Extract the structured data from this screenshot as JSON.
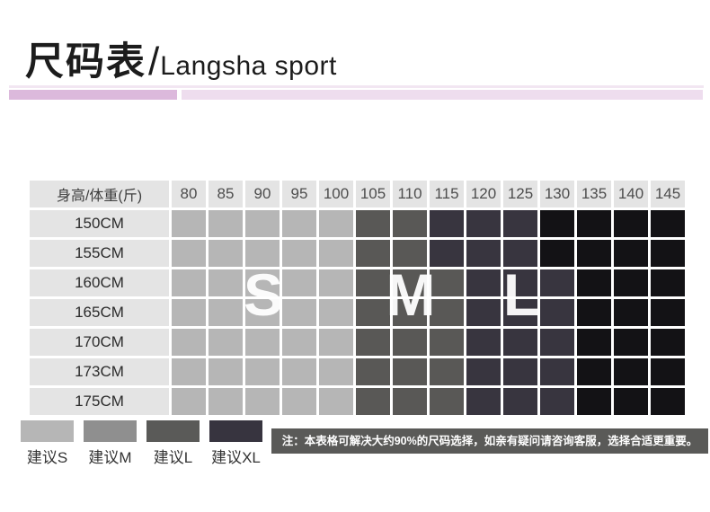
{
  "header": {
    "title_zh": "尺码表",
    "slash": "/",
    "title_en": "Langsha sport"
  },
  "colors": {
    "accent_bar_thin": "#f2e6f2",
    "accent_bar_left": "#dcb9dc",
    "accent_bar_right": "#eeddee",
    "header_bg": "#e4e4e4",
    "cell": {
      "S": "#b6b6b6",
      "M": "#595856",
      "L": "#38353f",
      "XL": "#131215"
    },
    "note_bg": "#5a5a58"
  },
  "table": {
    "corner_label": "身高/体重(斤)",
    "weight_columns": [
      "80",
      "85",
      "90",
      "95",
      "100",
      "105",
      "110",
      "115",
      "120",
      "125",
      "130",
      "135",
      "140",
      "145"
    ],
    "rows": [
      {
        "label": "150CM",
        "sizes": [
          "S",
          "S",
          "S",
          "S",
          "S",
          "M",
          "M",
          "L",
          "L",
          "L",
          "XL",
          "XL",
          "XL",
          "XL"
        ]
      },
      {
        "label": "155CM",
        "sizes": [
          "S",
          "S",
          "S",
          "S",
          "S",
          "M",
          "M",
          "L",
          "L",
          "L",
          "XL",
          "XL",
          "XL",
          "XL"
        ]
      },
      {
        "label": "160CM",
        "sizes": [
          "S",
          "S",
          "S",
          "S",
          "S",
          "M",
          "M",
          "M",
          "L",
          "L",
          "L",
          "XL",
          "XL",
          "XL"
        ]
      },
      {
        "label": "165CM",
        "sizes": [
          "S",
          "S",
          "S",
          "S",
          "S",
          "M",
          "M",
          "M",
          "L",
          "L",
          "L",
          "XL",
          "XL",
          "XL"
        ]
      },
      {
        "label": "170CM",
        "sizes": [
          "S",
          "S",
          "S",
          "S",
          "S",
          "M",
          "M",
          "M",
          "L",
          "L",
          "L",
          "XL",
          "XL",
          "XL"
        ]
      },
      {
        "label": "173CM",
        "sizes": [
          "S",
          "S",
          "S",
          "S",
          "S",
          "M",
          "M",
          "M",
          "L",
          "L",
          "L",
          "XL",
          "XL",
          "XL"
        ]
      },
      {
        "label": "175CM",
        "sizes": [
          "S",
          "S",
          "S",
          "S",
          "S",
          "M",
          "M",
          "M",
          "L",
          "L",
          "L",
          "XL",
          "XL",
          "XL"
        ]
      }
    ],
    "overlay_letters": [
      {
        "text": "S"
      },
      {
        "text": "M"
      },
      {
        "text": "L"
      }
    ]
  },
  "legend": {
    "items": [
      {
        "label": "建议S",
        "color": "#b6b6b6"
      },
      {
        "label": "建议M",
        "color": "#8f8f8f"
      },
      {
        "label": "建议L",
        "color": "#5a5a58"
      },
      {
        "label": "建议XL",
        "color": "#37343f"
      }
    ]
  },
  "note": {
    "text": "注：本表格可解决大约90%的尺码选择，如亲有疑问请咨询客服，选择合适更重要。"
  },
  "chart_data": {
    "type": "heatmap",
    "title": "尺码表/Langsha sport",
    "xlabel": "体重(斤)",
    "ylabel": "身高",
    "x": [
      "80",
      "85",
      "90",
      "95",
      "100",
      "105",
      "110",
      "115",
      "120",
      "125",
      "130",
      "135",
      "140",
      "145"
    ],
    "y": [
      "150CM",
      "155CM",
      "160CM",
      "165CM",
      "170CM",
      "173CM",
      "175CM"
    ],
    "values": [
      [
        "S",
        "S",
        "S",
        "S",
        "S",
        "M",
        "M",
        "L",
        "L",
        "L",
        "XL",
        "XL",
        "XL",
        "XL"
      ],
      [
        "S",
        "S",
        "S",
        "S",
        "S",
        "M",
        "M",
        "L",
        "L",
        "L",
        "XL",
        "XL",
        "XL",
        "XL"
      ],
      [
        "S",
        "S",
        "S",
        "S",
        "S",
        "M",
        "M",
        "M",
        "L",
        "L",
        "L",
        "XL",
        "XL",
        "XL"
      ],
      [
        "S",
        "S",
        "S",
        "S",
        "S",
        "M",
        "M",
        "M",
        "L",
        "L",
        "L",
        "XL",
        "XL",
        "XL"
      ],
      [
        "S",
        "S",
        "S",
        "S",
        "S",
        "M",
        "M",
        "M",
        "L",
        "L",
        "L",
        "XL",
        "XL",
        "XL"
      ],
      [
        "S",
        "S",
        "S",
        "S",
        "S",
        "M",
        "M",
        "M",
        "L",
        "L",
        "L",
        "XL",
        "XL",
        "XL"
      ],
      [
        "S",
        "S",
        "S",
        "S",
        "S",
        "M",
        "M",
        "M",
        "L",
        "L",
        "L",
        "XL",
        "XL",
        "XL"
      ]
    ],
    "legend_entries": [
      "建议S",
      "建议M",
      "建议L",
      "建议XL"
    ],
    "legend_position": "bottom-left",
    "grid": true,
    "annotations": [
      "S",
      "M",
      "L"
    ]
  }
}
